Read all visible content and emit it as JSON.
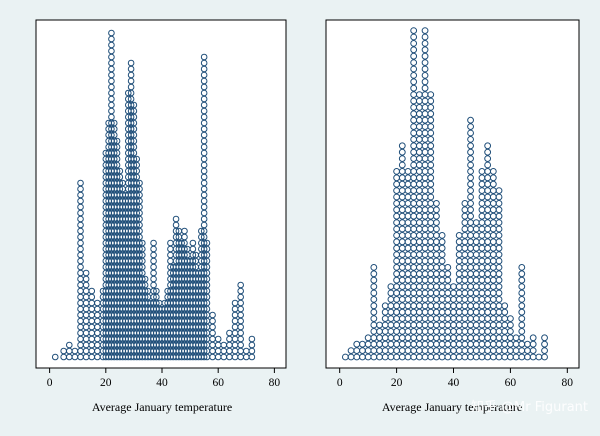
{
  "watermark": "知乎 @Mr Figurant",
  "chart_data": [
    {
      "type": "dot-strip",
      "xlabel": "Average January temperature",
      "xticks": [
        0,
        20,
        40,
        60,
        80
      ],
      "xlim": [
        -2,
        82
      ],
      "marker": {
        "shape": "hollow-circle",
        "color": "#1f4e79"
      },
      "points": [
        {
          "x": 2,
          "count": 1
        },
        {
          "x": 5,
          "count": 2
        },
        {
          "x": 7,
          "count": 3
        },
        {
          "x": 9,
          "count": 2
        },
        {
          "x": 11,
          "count": 30
        },
        {
          "x": 13,
          "count": 15
        },
        {
          "x": 15,
          "count": 12
        },
        {
          "x": 17,
          "count": 10
        },
        {
          "x": 19,
          "count": 12
        },
        {
          "x": 20,
          "count": 35
        },
        {
          "x": 21,
          "count": 40
        },
        {
          "x": 22,
          "count": 55
        },
        {
          "x": 23,
          "count": 40
        },
        {
          "x": 24,
          "count": 37
        },
        {
          "x": 25,
          "count": 32
        },
        {
          "x": 26,
          "count": 30
        },
        {
          "x": 27,
          "count": 28
        },
        {
          "x": 28,
          "count": 45
        },
        {
          "x": 29,
          "count": 50
        },
        {
          "x": 30,
          "count": 43
        },
        {
          "x": 31,
          "count": 34
        },
        {
          "x": 32,
          "count": 30
        },
        {
          "x": 33,
          "count": 20
        },
        {
          "x": 34,
          "count": 14
        },
        {
          "x": 35,
          "count": 12
        },
        {
          "x": 36,
          "count": 10
        },
        {
          "x": 37,
          "count": 20
        },
        {
          "x": 38,
          "count": 12
        },
        {
          "x": 39,
          "count": 10
        },
        {
          "x": 40,
          "count": 9
        },
        {
          "x": 41,
          "count": 10
        },
        {
          "x": 42,
          "count": 12
        },
        {
          "x": 43,
          "count": 20
        },
        {
          "x": 44,
          "count": 16
        },
        {
          "x": 45,
          "count": 24
        },
        {
          "x": 46,
          "count": 22
        },
        {
          "x": 47,
          "count": 20
        },
        {
          "x": 48,
          "count": 22
        },
        {
          "x": 49,
          "count": 19
        },
        {
          "x": 50,
          "count": 17
        },
        {
          "x": 51,
          "count": 20
        },
        {
          "x": 52,
          "count": 18
        },
        {
          "x": 53,
          "count": 15
        },
        {
          "x": 54,
          "count": 22
        },
        {
          "x": 55,
          "count": 51
        },
        {
          "x": 56,
          "count": 20
        },
        {
          "x": 58,
          "count": 8
        },
        {
          "x": 60,
          "count": 4
        },
        {
          "x": 62,
          "count": 3
        },
        {
          "x": 64,
          "count": 5
        },
        {
          "x": 66,
          "count": 10
        },
        {
          "x": 68,
          "count": 13
        },
        {
          "x": 70,
          "count": 2
        },
        {
          "x": 72,
          "count": 4
        }
      ]
    },
    {
      "type": "dot-histogram",
      "xlabel": "Average January temperature",
      "xticks": [
        0,
        20,
        40,
        60,
        80
      ],
      "xlim": [
        -2,
        82
      ],
      "marker": {
        "shape": "hollow-circle",
        "color": "#1f4e79"
      },
      "points": [
        {
          "x": 2,
          "count": 1
        },
        {
          "x": 4,
          "count": 2
        },
        {
          "x": 6,
          "count": 3
        },
        {
          "x": 8,
          "count": 3
        },
        {
          "x": 10,
          "count": 4
        },
        {
          "x": 12,
          "count": 15
        },
        {
          "x": 14,
          "count": 6
        },
        {
          "x": 16,
          "count": 9
        },
        {
          "x": 18,
          "count": 12
        },
        {
          "x": 20,
          "count": 30
        },
        {
          "x": 22,
          "count": 34
        },
        {
          "x": 24,
          "count": 30
        },
        {
          "x": 26,
          "count": 52
        },
        {
          "x": 28,
          "count": 42
        },
        {
          "x": 30,
          "count": 52
        },
        {
          "x": 32,
          "count": 42
        },
        {
          "x": 34,
          "count": 25
        },
        {
          "x": 36,
          "count": 20
        },
        {
          "x": 38,
          "count": 15
        },
        {
          "x": 40,
          "count": 12
        },
        {
          "x": 42,
          "count": 20
        },
        {
          "x": 44,
          "count": 25
        },
        {
          "x": 46,
          "count": 38
        },
        {
          "x": 48,
          "count": 22
        },
        {
          "x": 50,
          "count": 30
        },
        {
          "x": 52,
          "count": 34
        },
        {
          "x": 54,
          "count": 30
        },
        {
          "x": 56,
          "count": 27
        },
        {
          "x": 58,
          "count": 9
        },
        {
          "x": 60,
          "count": 7
        },
        {
          "x": 62,
          "count": 4
        },
        {
          "x": 64,
          "count": 15
        },
        {
          "x": 66,
          "count": 3
        },
        {
          "x": 68,
          "count": 4
        },
        {
          "x": 70,
          "count": 1
        },
        {
          "x": 72,
          "count": 4
        }
      ]
    }
  ]
}
